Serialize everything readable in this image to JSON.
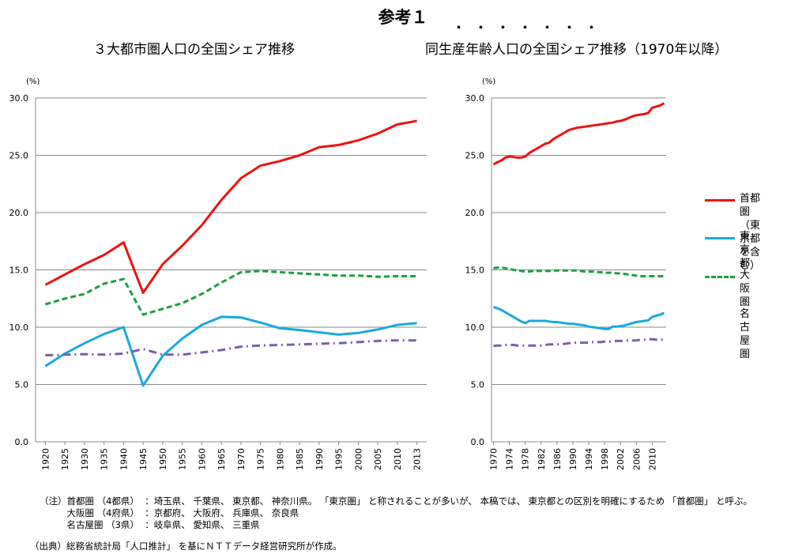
{
  "page": {
    "main_title": "参考１",
    "left_title": "３大都市圏人口の全国シェア推移",
    "right_title": "同生産年齢人口の全国シェア推移（1970年以降）",
    "emphasis_dots": "・・・・・・・"
  },
  "legend": {
    "items": [
      {
        "label_lines": [
          "首都圏（東",
          "京都を含む）"
        ],
        "color": "#ee1111",
        "style": "solid"
      },
      {
        "label_lines": [
          "東京都"
        ],
        "color": "#18a8e0",
        "style": "solid"
      },
      {
        "label_lines": [
          "大阪圏"
        ],
        "color": "#1b9e3e",
        "style": "dashed"
      },
      {
        "label_lines": [
          "名古屋圏"
        ],
        "color": "#7c5ea6",
        "style": "dashdot"
      }
    ]
  },
  "notes": {
    "line1": "（注）首都圏 （4都県）  ：埼玉県、 千葉県、 東京都、 神奈川県。 「東京圏」 と称されることが多いが、 本稿では、 東京都との区別を明確にするため 「首都圏」 と呼ぶ。",
    "line2": "　　　大阪圏 （4府県）  ：京都府、 大阪府、 兵庫県、 奈良県",
    "line3": "　　　名古屋圏 （3県）  ：岐阜県、 愛知県、 三重県",
    "source": "（出典）総務省統計局「人口推計」 を基にＮＴＴデータ経営研究所が作成。"
  },
  "chart_data": [
    {
      "type": "line",
      "title": "３大都市圏人口の全国シェア推移",
      "ylabel": "(%)",
      "ylim": [
        0,
        30
      ],
      "yticks": [
        "0.0",
        "5.0",
        "10.0",
        "15.0",
        "20.0",
        "25.0",
        "30.0"
      ],
      "grid": true,
      "x": [
        "1920",
        "1925",
        "1930",
        "1935",
        "1940",
        "1945",
        "1950",
        "1955",
        "1960",
        "1965",
        "1970",
        "1975",
        "1980",
        "1985",
        "1990",
        "1995",
        "2000",
        "2005",
        "2010",
        "2013"
      ],
      "series": [
        {
          "name": "首都圏（東京都を含む）",
          "color": "#ee1111",
          "style": "solid",
          "values": [
            13.7,
            14.6,
            15.5,
            16.3,
            17.4,
            13.0,
            15.5,
            17.1,
            18.9,
            21.1,
            23.0,
            24.1,
            24.5,
            25.0,
            25.7,
            25.9,
            26.3,
            26.9,
            27.7,
            28.0
          ]
        },
        {
          "name": "東京都",
          "color": "#18a8e0",
          "style": "solid",
          "values": [
            6.6,
            7.7,
            8.6,
            9.4,
            10.0,
            4.9,
            7.5,
            9.0,
            10.2,
            10.9,
            10.85,
            10.4,
            9.9,
            9.75,
            9.55,
            9.35,
            9.5,
            9.8,
            10.2,
            10.35
          ]
        },
        {
          "name": "大阪圏",
          "color": "#1b9e3e",
          "style": "dashed",
          "values": [
            12.0,
            12.5,
            12.9,
            13.8,
            14.2,
            11.1,
            11.6,
            12.1,
            12.9,
            13.9,
            14.8,
            14.9,
            14.8,
            14.7,
            14.6,
            14.5,
            14.5,
            14.4,
            14.45,
            14.45
          ]
        },
        {
          "name": "名古屋圏",
          "color": "#7c5ea6",
          "style": "dashdot",
          "values": [
            7.55,
            7.6,
            7.65,
            7.6,
            7.7,
            8.1,
            7.6,
            7.6,
            7.8,
            8.0,
            8.3,
            8.4,
            8.45,
            8.5,
            8.55,
            8.6,
            8.7,
            8.8,
            8.85,
            8.85
          ]
        }
      ]
    },
    {
      "type": "line",
      "title": "同生産年齢人口の全国シェア推移（1970年以降）",
      "ylabel": "(%)",
      "ylim": [
        0,
        30
      ],
      "yticks": [
        "0.0",
        "5.0",
        "10.0",
        "15.0",
        "20.0",
        "25.0",
        "30.0"
      ],
      "grid": true,
      "x_tick_labels": [
        "1970",
        "1974",
        "1978",
        "1982",
        "1986",
        "1990",
        "1994",
        "1998",
        "2002",
        "2006",
        "2010"
      ],
      "x": [
        1970,
        1971,
        1972,
        1973,
        1974,
        1975,
        1976,
        1977,
        1978,
        1979,
        1980,
        1981,
        1982,
        1983,
        1984,
        1985,
        1986,
        1987,
        1988,
        1989,
        1990,
        1991,
        1992,
        1993,
        1994,
        1995,
        1996,
        1997,
        1998,
        1999,
        2000,
        2001,
        2002,
        2003,
        2004,
        2005,
        2006,
        2007,
        2008,
        2009,
        2010,
        2011,
        2012,
        2013
      ],
      "series": [
        {
          "name": "首都圏（東京都を含む）",
          "color": "#ee1111",
          "style": "solid",
          "values": [
            24.2,
            24.4,
            24.55,
            24.8,
            24.9,
            24.85,
            24.8,
            24.8,
            24.9,
            25.2,
            25.4,
            25.6,
            25.8,
            26.0,
            26.1,
            26.4,
            26.6,
            26.8,
            27.0,
            27.2,
            27.3,
            27.4,
            27.45,
            27.5,
            27.55,
            27.6,
            27.65,
            27.7,
            27.75,
            27.8,
            27.85,
            27.95,
            28.0,
            28.1,
            28.25,
            28.4,
            28.5,
            28.55,
            28.6,
            28.7,
            29.15,
            29.25,
            29.35,
            29.55
          ]
        },
        {
          "name": "東京都",
          "color": "#18a8e0",
          "style": "solid",
          "values": [
            11.75,
            11.65,
            11.5,
            11.3,
            11.1,
            10.9,
            10.7,
            10.5,
            10.35,
            10.55,
            10.55,
            10.55,
            10.55,
            10.55,
            10.5,
            10.45,
            10.45,
            10.4,
            10.35,
            10.3,
            10.3,
            10.25,
            10.2,
            10.15,
            10.05,
            10.0,
            9.95,
            9.9,
            9.85,
            9.85,
            10.05,
            10.05,
            10.1,
            10.15,
            10.25,
            10.35,
            10.45,
            10.5,
            10.55,
            10.6,
            10.9,
            11.0,
            11.1,
            11.25
          ]
        },
        {
          "name": "大阪圏",
          "color": "#1b9e3e",
          "style": "dashed",
          "values": [
            15.15,
            15.2,
            15.2,
            15.15,
            15.1,
            15.0,
            14.95,
            14.9,
            14.85,
            14.85,
            14.9,
            14.9,
            14.9,
            14.9,
            14.9,
            14.95,
            14.95,
            14.95,
            14.95,
            14.95,
            14.95,
            14.95,
            14.9,
            14.85,
            14.85,
            14.85,
            14.8,
            14.8,
            14.75,
            14.75,
            14.75,
            14.7,
            14.7,
            14.65,
            14.6,
            14.55,
            14.5,
            14.45,
            14.45,
            14.45,
            14.45,
            14.45,
            14.45,
            14.45
          ]
        },
        {
          "name": "名古屋圏",
          "color": "#7c5ea6",
          "style": "dashdot",
          "values": [
            8.35,
            8.4,
            8.4,
            8.45,
            8.45,
            8.45,
            8.4,
            8.4,
            8.4,
            8.4,
            8.4,
            8.4,
            8.4,
            8.45,
            8.5,
            8.5,
            8.5,
            8.5,
            8.55,
            8.6,
            8.65,
            8.65,
            8.65,
            8.65,
            8.65,
            8.7,
            8.7,
            8.7,
            8.75,
            8.75,
            8.75,
            8.8,
            8.8,
            8.8,
            8.85,
            8.85,
            8.85,
            8.9,
            8.9,
            8.95,
            8.95,
            8.9,
            8.9,
            8.9
          ]
        }
      ]
    }
  ]
}
